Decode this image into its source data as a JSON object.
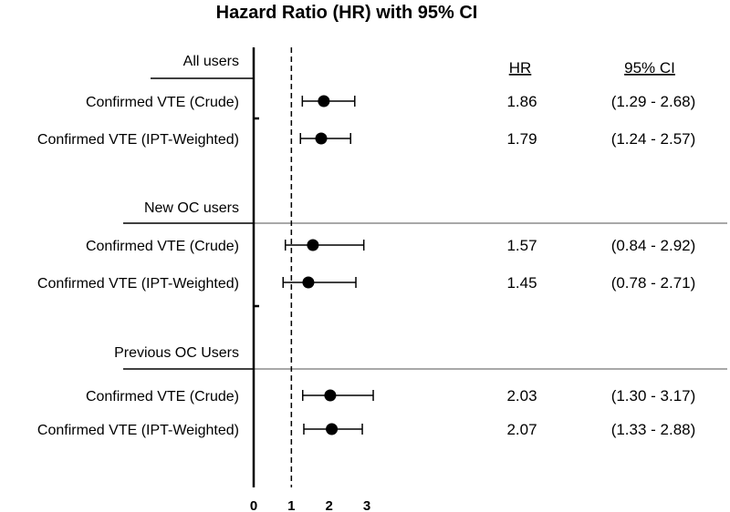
{
  "chart_data": {
    "type": "forest",
    "title": "Hazard Ratio (HR) with 95% CI",
    "xlim": [
      0,
      3
    ],
    "xticks": [
      0,
      1,
      2,
      3
    ],
    "reference_line": 1,
    "columns": {
      "hr": "HR",
      "ci": "95% CI"
    },
    "groups": [
      {
        "name": "All users",
        "rows": [
          {
            "label": "Confirmed VTE (Crude)",
            "hr": 1.86,
            "lo": 1.29,
            "hi": 2.68,
            "hr_text": "1.86",
            "ci_text": "(1.29 - 2.68)"
          },
          {
            "label": "Confirmed VTE (IPT-Weighted)",
            "hr": 1.79,
            "lo": 1.24,
            "hi": 2.57,
            "hr_text": "1.79",
            "ci_text": "(1.24 - 2.57)"
          }
        ]
      },
      {
        "name": "New OC users",
        "rows": [
          {
            "label": "Confirmed VTE (Crude)",
            "hr": 1.57,
            "lo": 0.84,
            "hi": 2.92,
            "hr_text": "1.57",
            "ci_text": "(0.84 - 2.92)"
          },
          {
            "label": "Confirmed VTE (IPT-Weighted)",
            "hr": 1.45,
            "lo": 0.78,
            "hi": 2.71,
            "hr_text": "1.45",
            "ci_text": "(0.78 - 2.71)"
          }
        ]
      },
      {
        "name": "Previous OC Users",
        "rows": [
          {
            "label": "Confirmed VTE (Crude)",
            "hr": 2.03,
            "lo": 1.3,
            "hi": 3.17,
            "hr_text": "2.03",
            "ci_text": "(1.30 - 3.17)"
          },
          {
            "label": "Confirmed VTE (IPT-Weighted)",
            "hr": 2.07,
            "lo": 1.33,
            "hi": 2.88,
            "hr_text": "2.07",
            "ci_text": "(1.33 - 2.88)"
          }
        ]
      }
    ]
  }
}
